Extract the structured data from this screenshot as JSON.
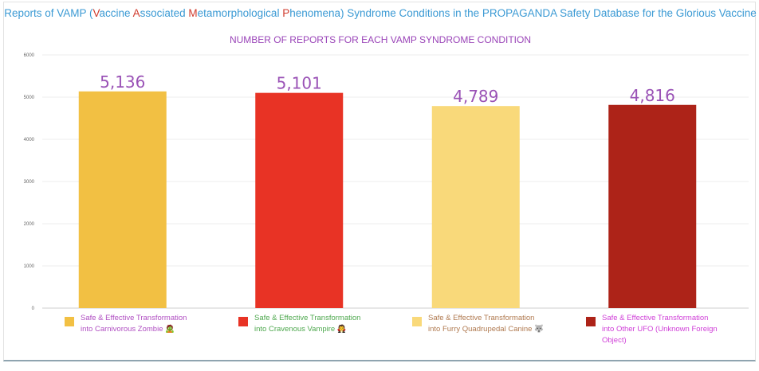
{
  "title": {
    "parts": [
      {
        "text": "Reports of VAMP (",
        "hl": false
      },
      {
        "text": "V",
        "hl": true
      },
      {
        "text": "accine ",
        "hl": false
      },
      {
        "text": "A",
        "hl": true
      },
      {
        "text": "ssociated ",
        "hl": false
      },
      {
        "text": "M",
        "hl": true
      },
      {
        "text": "etamorphological ",
        "hl": false
      },
      {
        "text": "P",
        "hl": true
      },
      {
        "text": "henomena) Syndrome Conditions in the PROPAGANDA Safety Database for the Glorious Vaccine",
        "hl": false
      }
    ]
  },
  "subtitle": "NUMBER OF REPORTS FOR EACH VAMP SYNDROME CONDITION",
  "chart_data": {
    "type": "bar",
    "title": "Reports of VAMP (Vaccine Associated Metamorphological Phenomena) Syndrome Conditions in the PROPAGANDA Safety Database for the Glorious Vaccine",
    "subtitle": "NUMBER OF REPORTS FOR EACH VAMP SYNDROME CONDITION",
    "ylim": [
      0,
      6000
    ],
    "yticks": [
      "0",
      "1000",
      "2000",
      "3000",
      "4000",
      "5000",
      "6000"
    ],
    "grid": true,
    "legend_position": "bottom",
    "categories": [
      "Safe & Effective Transformation into Carnivorous Zombie",
      "Safe & Effective Transformation into Cravenous Vampire",
      "Safe & Effective Transformation into Furry Quadrupedal Canine",
      "Safe & Effective Transformation into Other UFO (Unknown Foreign Object)"
    ],
    "values": [
      5136,
      5101,
      4789,
      4816
    ],
    "data_labels": [
      "5,136",
      "5,101",
      "4,789",
      "4,816"
    ],
    "bar_colors": [
      "#f2c043",
      "#e83325",
      "#f9d97a",
      "#ad2318"
    ],
    "label_color": "#9a52b6",
    "legend": [
      {
        "lines": [
          "Safe & Effective Transformation",
          "into Carnivorous Zombie 🧟"
        ],
        "color": "#f2c043",
        "text_color": "#b04fc2"
      },
      {
        "lines": [
          "Safe & Effective Transformation",
          "into Cravenous Vampire 🧛"
        ],
        "color": "#e83325",
        "text_color": "#4ea84e"
      },
      {
        "lines": [
          "Safe & Effective Transformation",
          "into Furry Quadrupedal Canine 🐺"
        ],
        "color": "#f9d97a",
        "text_color": "#b07a50"
      },
      {
        "lines": [
          "Safe & Effective Transformation",
          "into Other UFO (Unknown Foreign",
          "Object)"
        ],
        "color": "#ad2318",
        "text_color": "#d040d8"
      }
    ]
  }
}
